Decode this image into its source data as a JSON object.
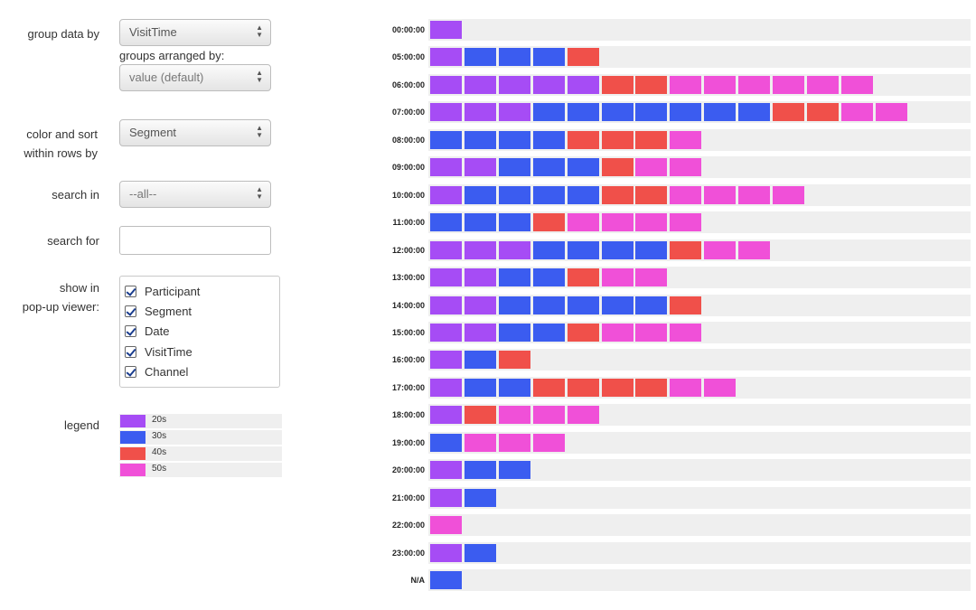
{
  "controls": {
    "group_by": {
      "label": "group data by",
      "value": "VisitTime"
    },
    "arranged_by": {
      "label": "groups arranged by:",
      "value": "value (default)"
    },
    "color_sort": {
      "label_line1": "color and sort",
      "label_line2": "within rows by",
      "value": "Segment"
    },
    "search_in": {
      "label": "search in",
      "value": "--all--"
    },
    "search_for": {
      "label": "search for",
      "value": ""
    },
    "popup": {
      "label_line1": "show in",
      "label_line2": "pop-up viewer:",
      "items": [
        "Participant",
        "Segment",
        "Date",
        "VisitTime",
        "Channel"
      ]
    },
    "legend_label": "legend"
  },
  "legend": [
    {
      "label": "20s",
      "color": "#a64cf5"
    },
    {
      "label": "30s",
      "color": "#3b5cf0"
    },
    {
      "label": "40s",
      "color": "#f0504a"
    },
    {
      "label": "50s",
      "color": "#f050d8"
    }
  ],
  "colors": {
    "20s": "#a64cf5",
    "30s": "#3b5cf0",
    "40s": "#f0504a",
    "50s": "#f050d8"
  },
  "chart_data": {
    "type": "stacked unit bar",
    "series_order": [
      "20s",
      "30s",
      "40s",
      "50s"
    ],
    "rows": [
      {
        "label": "00:00:00",
        "counts": [
          1,
          0,
          0,
          0
        ]
      },
      {
        "label": "05:00:00",
        "counts": [
          1,
          3,
          1,
          0
        ]
      },
      {
        "label": "06:00:00",
        "counts": [
          5,
          0,
          2,
          6
        ]
      },
      {
        "label": "07:00:00",
        "counts": [
          3,
          7,
          2,
          2
        ]
      },
      {
        "label": "08:00:00",
        "counts": [
          0,
          4,
          3,
          1
        ]
      },
      {
        "label": "09:00:00",
        "counts": [
          2,
          3,
          1,
          2
        ]
      },
      {
        "label": "10:00:00",
        "counts": [
          1,
          4,
          2,
          4
        ]
      },
      {
        "label": "11:00:00",
        "counts": [
          0,
          3,
          1,
          4
        ]
      },
      {
        "label": "12:00:00",
        "counts": [
          3,
          4,
          1,
          2
        ]
      },
      {
        "label": "13:00:00",
        "counts": [
          2,
          2,
          1,
          2
        ]
      },
      {
        "label": "14:00:00",
        "counts": [
          2,
          5,
          1,
          0
        ]
      },
      {
        "label": "15:00:00",
        "counts": [
          2,
          2,
          1,
          3
        ]
      },
      {
        "label": "16:00:00",
        "counts": [
          1,
          1,
          1,
          0
        ]
      },
      {
        "label": "17:00:00",
        "counts": [
          1,
          2,
          4,
          2
        ]
      },
      {
        "label": "18:00:00",
        "counts": [
          1,
          0,
          1,
          3
        ]
      },
      {
        "label": "19:00:00",
        "counts": [
          0,
          1,
          0,
          3
        ]
      },
      {
        "label": "20:00:00",
        "counts": [
          1,
          2,
          0,
          0
        ]
      },
      {
        "label": "21:00:00",
        "counts": [
          1,
          1,
          0,
          0
        ]
      },
      {
        "label": "22:00:00",
        "counts": [
          0,
          0,
          0,
          1
        ]
      },
      {
        "label": "23:00:00",
        "counts": [
          1,
          1,
          0,
          0
        ]
      },
      {
        "label": "N/A",
        "counts": [
          0,
          1,
          0,
          0
        ]
      }
    ]
  }
}
